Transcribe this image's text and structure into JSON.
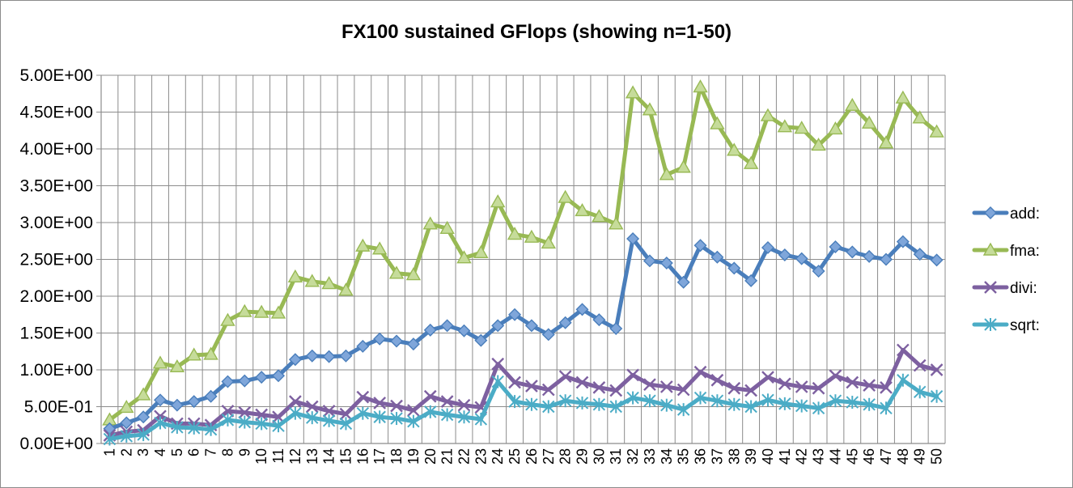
{
  "chart_data": {
    "type": "line",
    "title": "FX100 sustained GFlops (showing n=1-50)",
    "xlabel": "",
    "ylabel": "",
    "ylim": [
      0,
      5
    ],
    "y_ticks": [
      "0.00E+00",
      "5.00E-01",
      "1.00E+00",
      "1.50E+00",
      "2.00E+00",
      "2.50E+00",
      "3.00E+00",
      "3.50E+00",
      "4.00E+00",
      "4.50E+00",
      "5.00E+00"
    ],
    "grid": true,
    "legend_position": "right",
    "x": [
      "1",
      "2",
      "3",
      "4",
      "5",
      "6",
      "7",
      "8",
      "9",
      "10",
      "11",
      "12",
      "13",
      "14",
      "15",
      "16",
      "17",
      "18",
      "19",
      "20",
      "21",
      "22",
      "23",
      "24",
      "25",
      "26",
      "27",
      "28",
      "29",
      "30",
      "31",
      "32",
      "33",
      "34",
      "35",
      "36",
      "37",
      "38",
      "39",
      "40",
      "41",
      "42",
      "43",
      "44",
      "45",
      "46",
      "47",
      "48",
      "49",
      "50"
    ],
    "series": [
      {
        "name": "add:",
        "color": "#4a7ebb",
        "marker": "diamond",
        "values": [
          0.2,
          0.28,
          0.36,
          0.59,
          0.52,
          0.57,
          0.64,
          0.84,
          0.85,
          0.9,
          0.92,
          1.14,
          1.19,
          1.18,
          1.19,
          1.32,
          1.42,
          1.39,
          1.35,
          1.54,
          1.6,
          1.53,
          1.4,
          1.6,
          1.75,
          1.6,
          1.48,
          1.64,
          1.82,
          1.68,
          1.56,
          2.78,
          2.48,
          2.45,
          2.19,
          2.69,
          2.53,
          2.38,
          2.21,
          2.66,
          2.56,
          2.51,
          2.34,
          2.67,
          2.6,
          2.54,
          2.5,
          2.74,
          2.57,
          2.49
        ]
      },
      {
        "name": "fma:",
        "color": "#98b954",
        "marker": "triangle",
        "values": [
          0.32,
          0.49,
          0.66,
          1.09,
          1.04,
          1.2,
          1.21,
          1.67,
          1.79,
          1.78,
          1.77,
          2.26,
          2.2,
          2.17,
          2.08,
          2.68,
          2.64,
          2.31,
          2.29,
          2.98,
          2.92,
          2.52,
          2.59,
          3.28,
          2.84,
          2.8,
          2.72,
          3.34,
          3.16,
          3.08,
          2.98,
          4.76,
          4.53,
          3.65,
          3.75,
          4.84,
          4.34,
          3.98,
          3.8,
          4.45,
          4.3,
          4.28,
          4.05,
          4.27,
          4.59,
          4.35,
          4.08,
          4.69,
          4.42,
          4.23
        ]
      },
      {
        "name": "divi:",
        "color": "#7d60a0",
        "marker": "x",
        "values": [
          0.11,
          0.16,
          0.18,
          0.37,
          0.27,
          0.27,
          0.25,
          0.44,
          0.42,
          0.39,
          0.36,
          0.57,
          0.5,
          0.44,
          0.4,
          0.63,
          0.55,
          0.51,
          0.45,
          0.64,
          0.57,
          0.52,
          0.49,
          1.08,
          0.83,
          0.78,
          0.73,
          0.91,
          0.83,
          0.76,
          0.72,
          0.93,
          0.8,
          0.77,
          0.73,
          0.97,
          0.86,
          0.75,
          0.72,
          0.9,
          0.81,
          0.77,
          0.75,
          0.92,
          0.83,
          0.79,
          0.76,
          1.27,
          1.06,
          1.0
        ]
      },
      {
        "name": "sqrt:",
        "color": "#4bacc6",
        "marker": "star",
        "values": [
          0.06,
          0.1,
          0.12,
          0.28,
          0.22,
          0.21,
          0.19,
          0.32,
          0.29,
          0.27,
          0.24,
          0.41,
          0.35,
          0.31,
          0.27,
          0.41,
          0.36,
          0.34,
          0.3,
          0.43,
          0.39,
          0.36,
          0.33,
          0.84,
          0.57,
          0.53,
          0.5,
          0.58,
          0.55,
          0.53,
          0.5,
          0.62,
          0.58,
          0.52,
          0.46,
          0.62,
          0.58,
          0.53,
          0.5,
          0.59,
          0.54,
          0.51,
          0.48,
          0.58,
          0.56,
          0.53,
          0.48,
          0.86,
          0.7,
          0.64
        ]
      }
    ]
  }
}
